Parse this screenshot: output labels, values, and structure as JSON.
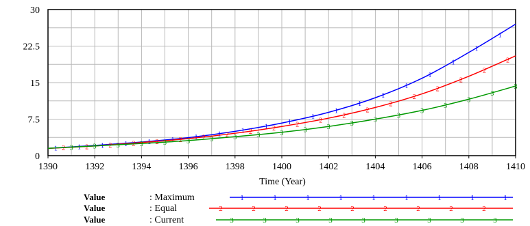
{
  "chart_data": {
    "type": "line",
    "title": "",
    "xlabel": "Time (Year)",
    "ylabel": "",
    "xlim": [
      1390,
      1410
    ],
    "ylim": [
      0,
      30
    ],
    "x_ticks": [
      "1390",
      "1392",
      "1394",
      "1396",
      "1398",
      "1400",
      "1402",
      "1404",
      "1406",
      "1408",
      "1410"
    ],
    "y_ticks": [
      "0",
      "7.5",
      "15",
      "22.5",
      "30"
    ],
    "grid": true,
    "legend_position": "bottom",
    "series": [
      {
        "name": "Maximum",
        "variable": "Value",
        "label": ": Maximum",
        "color": "#0000ff",
        "marker_text": "1",
        "x": [
          1390,
          1392,
          1394,
          1396,
          1398,
          1400,
          1402,
          1404,
          1406,
          1408,
          1410
        ],
        "values": [
          1.5,
          2.1,
          2.8,
          3.7,
          5.0,
          6.7,
          8.9,
          11.9,
          15.9,
          21.2,
          27.0
        ]
      },
      {
        "name": "Equal",
        "variable": "Value",
        "label": ": Equal",
        "color": "#ff0000",
        "marker_text": "2",
        "x": [
          1390,
          1392,
          1394,
          1396,
          1398,
          1400,
          1402,
          1404,
          1406,
          1408,
          1410
        ],
        "values": [
          1.5,
          2.0,
          2.7,
          3.5,
          4.6,
          6.0,
          7.7,
          9.9,
          12.7,
          16.3,
          20.5
        ]
      },
      {
        "name": "Current",
        "variable": "Value",
        "label": ": Current",
        "color": "#009900",
        "marker_text": "3",
        "x": [
          1390,
          1392,
          1394,
          1396,
          1398,
          1400,
          1402,
          1404,
          1406,
          1408,
          1410
        ],
        "values": [
          1.5,
          2.0,
          2.5,
          3.1,
          3.9,
          4.8,
          6.0,
          7.5,
          9.3,
          11.6,
          14.3
        ]
      }
    ]
  }
}
